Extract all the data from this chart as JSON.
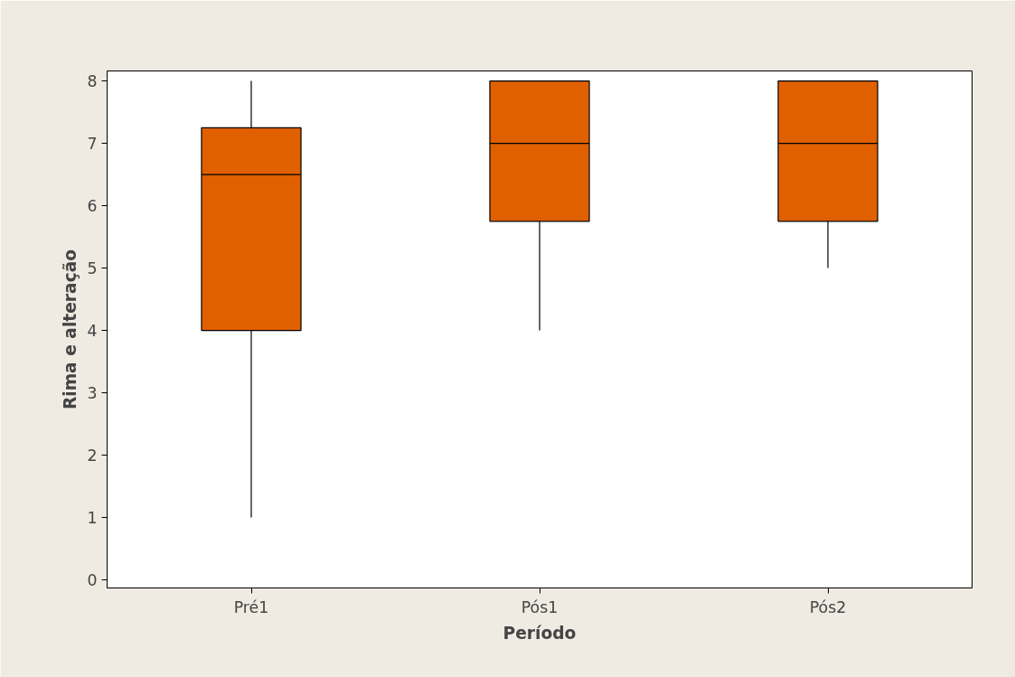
{
  "chart_data": {
    "type": "box",
    "xlabel": "Período",
    "ylabel": "Rima e alteração",
    "categories": [
      "Pré1",
      "Pós1",
      "Pós2"
    ],
    "series": [
      {
        "color": "#e06000",
        "boxes": [
          {
            "low": 1,
            "q1": 4,
            "median": 6.5,
            "q3": 7.25,
            "high": 8
          },
          {
            "low": 4,
            "q1": 5.75,
            "median": 7,
            "q3": 8,
            "high": 8
          },
          {
            "low": 5,
            "q1": 5.75,
            "median": 7,
            "q3": 8,
            "high": 8
          }
        ]
      }
    ],
    "ylim": [
      -0.13,
      8.16
    ],
    "yticks": [
      0,
      1,
      2,
      3,
      4,
      5,
      6,
      7,
      8
    ],
    "grid": false
  }
}
